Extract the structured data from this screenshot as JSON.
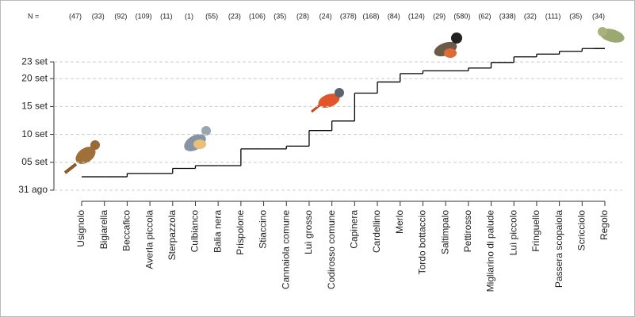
{
  "chart_data": {
    "type": "step",
    "n_title": "N =",
    "n_labels": [
      "(47)",
      "(33)",
      "(92)",
      "(109)",
      "(11)",
      "(1)",
      "(55)",
      "(23)",
      "(106)",
      "(35)",
      "(28)",
      "(24)",
      "(378)",
      "(168)",
      "(84)",
      "(124)",
      "(29)",
      "(580)",
      "(62)",
      "(338)",
      "(32)",
      "(111)",
      "(35)",
      "(34)"
    ],
    "categories": [
      "Usignolo",
      "Bigiarella",
      "Beccafico",
      "Averla piccola",
      "Sterpazzola",
      "Culbianco",
      "Balia nera",
      "Prispolone",
      "Stiaccino",
      "Cannaiola comune",
      "Luì grosso",
      "Codirosso comune",
      "Capinera",
      "Cardellino",
      "Merlo",
      "Tordo bottaccio",
      "Saltimpalo",
      "Pettirosso",
      "Migliarino di palude",
      "Luì piccolo",
      "Fringuello",
      "Passera scopaiola",
      "Scricciolo",
      "Regolo"
    ],
    "values": [
      2.4,
      2.4,
      3.0,
      3.0,
      3.9,
      4.4,
      4.4,
      7.4,
      7.4,
      7.9,
      10.7,
      12.4,
      17.4,
      19.4,
      20.9,
      21.4,
      21.4,
      21.9,
      22.9,
      23.9,
      24.4,
      24.9,
      25.4,
      25.4
    ],
    "color": "#000000",
    "ylim": [
      -1,
      26
    ],
    "yticks": [
      {
        "value": 0,
        "label": "31 ago"
      },
      {
        "value": 5,
        "label": "05 set"
      },
      {
        "value": 10,
        "label": "10 set"
      },
      {
        "value": 15,
        "label": "15 set"
      },
      {
        "value": 20,
        "label": "20 set"
      },
      {
        "value": 23,
        "label": "23 set"
      }
    ],
    "grid": true
  }
}
